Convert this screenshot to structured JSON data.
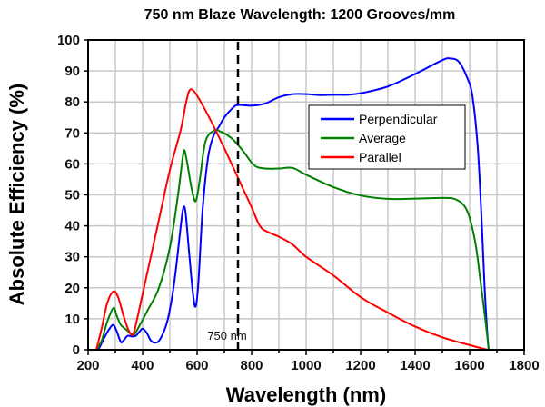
{
  "chart_data": {
    "type": "line",
    "title": "750 nm Blaze Wavelength: 1200 Grooves/mm",
    "xlabel": "Wavelength (nm)",
    "ylabel": "Absolute Efficiency (%)",
    "xlim": [
      200,
      1800
    ],
    "ylim": [
      0,
      100
    ],
    "xticks": [
      200,
      400,
      600,
      800,
      1000,
      1200,
      1400,
      1600,
      1800
    ],
    "yticks": [
      0,
      10,
      20,
      30,
      40,
      50,
      60,
      70,
      80,
      90,
      100
    ],
    "grid": true,
    "legend_position": "upper-right",
    "annotation": {
      "x": 750,
      "label": "750 nm",
      "style": "dashed vertical line"
    },
    "series": [
      {
        "name": "Perpendicular",
        "color": "#0000ff",
        "x": [
          230,
          240,
          260,
          280,
          293,
          305,
          320,
          330,
          345,
          360,
          375,
          390,
          400,
          415,
          430,
          448,
          465,
          490,
          510,
          525,
          540,
          550,
          558,
          570,
          585,
          595,
          605,
          620,
          640,
          660,
          680,
          700,
          730,
          750,
          800,
          850,
          900,
          950,
          1000,
          1050,
          1100,
          1150,
          1200,
          1300,
          1400,
          1500,
          1530,
          1560,
          1590,
          1610,
          1630,
          1645,
          1655,
          1665,
          1670
        ],
        "y": [
          0,
          0.5,
          4,
          7,
          8,
          6,
          2.5,
          3,
          4.5,
          4.3,
          4.5,
          6,
          6.8,
          5.5,
          3,
          2.3,
          3.5,
          9,
          18,
          28,
          40,
          46,
          44,
          32,
          18,
          14,
          22,
          45,
          62,
          69,
          72,
          75,
          78,
          79,
          78.8,
          79.5,
          81.5,
          82.5,
          82.5,
          82.2,
          82.3,
          82.3,
          82.8,
          85,
          89,
          93.5,
          94,
          93,
          88,
          82,
          65,
          40,
          20,
          5,
          0
        ]
      },
      {
        "name": "Average",
        "color": "#008000",
        "x": [
          230,
          250,
          270,
          293,
          305,
          320,
          340,
          360,
          370,
          390,
          420,
          460,
          500,
          530,
          550,
          560,
          580,
          595,
          610,
          630,
          660,
          690,
          730,
          770,
          810,
          850,
          900,
          950,
          1000,
          1100,
          1200,
          1300,
          1400,
          1500,
          1550,
          1590,
          1620,
          1640,
          1660,
          1670
        ],
        "y": [
          0,
          3,
          9,
          13.5,
          11,
          8,
          6.5,
          5,
          5,
          8,
          13,
          20,
          33,
          50,
          63.5,
          62,
          52,
          48,
          55,
          67,
          70.7,
          70.3,
          68,
          64,
          59.5,
          58.5,
          58.5,
          58.7,
          56.5,
          52.5,
          49.8,
          48.7,
          48.8,
          49,
          48.5,
          45,
          35,
          22,
          8,
          0
        ]
      },
      {
        "name": "Parallel",
        "color": "#ff0000",
        "x": [
          230,
          250,
          270,
          293,
          310,
          330,
          350,
          365,
          380,
          400,
          430,
          460,
          500,
          540,
          560,
          575,
          600,
          650,
          700,
          750,
          800,
          830,
          860,
          900,
          950,
          1000,
          1100,
          1200,
          1300,
          1400,
          1500,
          1600,
          1665
        ],
        "y": [
          0,
          7,
          15,
          18.8,
          17,
          11,
          6,
          5,
          10,
          18,
          30,
          42,
          58,
          71,
          80,
          84,
          82,
          74,
          65,
          55.5,
          46,
          40,
          38,
          36.5,
          34,
          30,
          24,
          17,
          12,
          7.5,
          4,
          1.5,
          0
        ]
      }
    ]
  }
}
